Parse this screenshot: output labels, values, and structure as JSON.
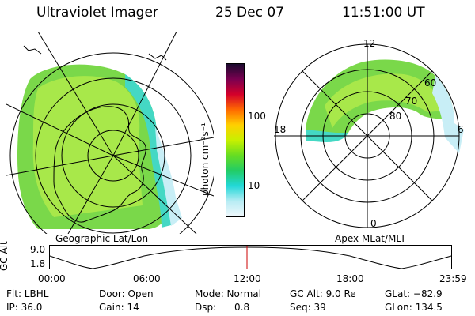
{
  "header": {
    "instrument": "Ultraviolet Imager",
    "date": "25 Dec 07",
    "time": "11:51:00 UT"
  },
  "left_panel": {
    "caption": "Geographic Lat/Lon"
  },
  "right_panel": {
    "caption": "Apex MLat/MLT",
    "mlt_labels": {
      "top": "12",
      "left": "18",
      "right": "6",
      "bottom": "0"
    },
    "lat_labels": [
      "60",
      "70",
      "80"
    ]
  },
  "colorbar": {
    "unit_label": "photon cm⁻²s⁻¹",
    "ticks": [
      "100",
      "10"
    ],
    "colors": [
      "#1a0a2e",
      "#7a0050",
      "#d4002a",
      "#ff6a00",
      "#ffd000",
      "#c8f000",
      "#66dd22",
      "#22cc66",
      "#22d8d8",
      "#b8ecf4",
      "#f0f8fc"
    ]
  },
  "timeline": {
    "axis_label": "GC Alt",
    "y_ticks": [
      "9.0",
      "1.8"
    ],
    "x_ticks": [
      "00:00",
      "06:00",
      "12:00",
      "18:00",
      "23:59"
    ],
    "marker_color": "#cc0000"
  },
  "info": {
    "row1": [
      "Flt: LBHL",
      "Door: Open",
      "Mode: Normal",
      "GC Alt: 9.0 Re",
      "GLat: −82.9"
    ],
    "row2": [
      "IP: 36.0",
      "Gain: 14",
      "Dsp:      0.8",
      "Seq: 39",
      "GLon: 134.5"
    ]
  }
}
